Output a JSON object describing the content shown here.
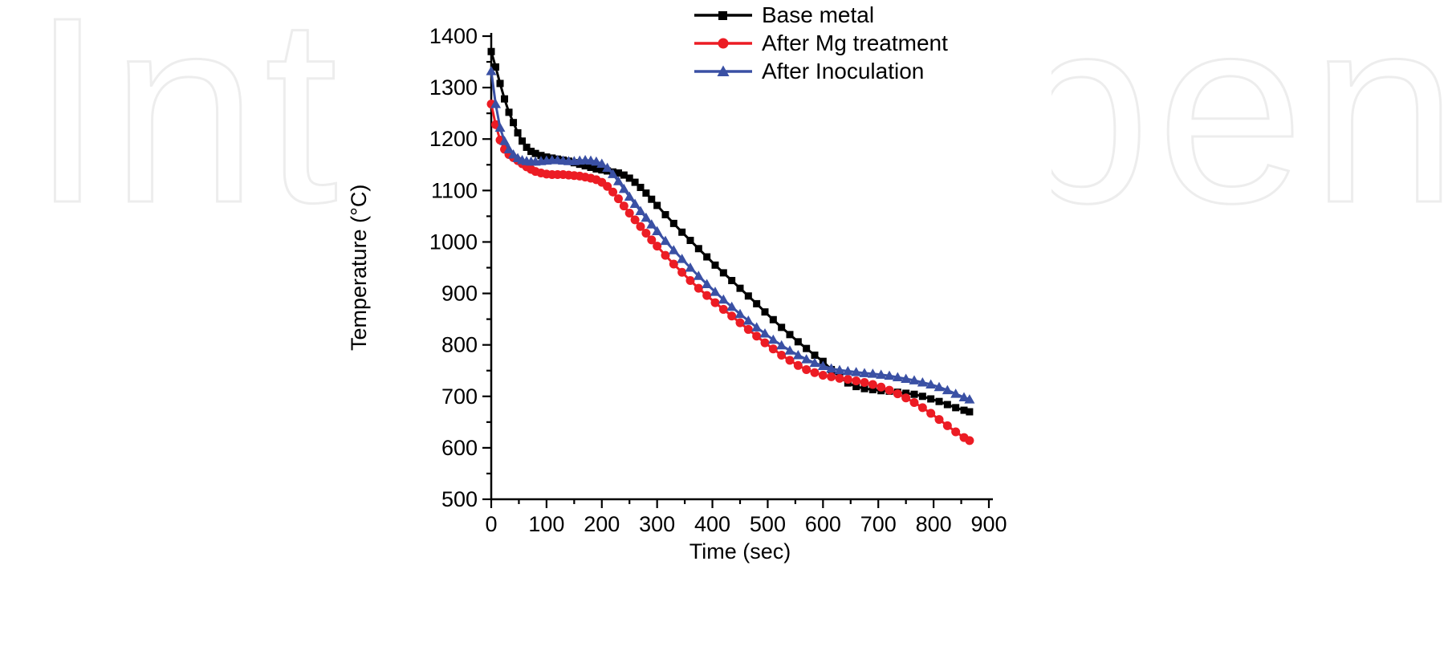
{
  "watermark": {
    "text": "IntechOpen"
  },
  "chart_data": {
    "type": "line",
    "title": "",
    "xlabel": "Time (sec)",
    "ylabel": "Temperature (°C)",
    "xlim": [
      0,
      900
    ],
    "ylim": [
      500,
      1400
    ],
    "x_major_step": 100,
    "x_minor_step": 50,
    "y_major_step": 100,
    "y_minor_step": 50,
    "x_tick_labels": [
      "0",
      "100",
      "200",
      "300",
      "400",
      "500",
      "600",
      "700",
      "800",
      "900"
    ],
    "y_tick_labels": [
      "500",
      "600",
      "700",
      "800",
      "900",
      "1000",
      "1100",
      "1200",
      "1300",
      "1400"
    ],
    "grid": false,
    "legend_position": "top-right",
    "series": [
      {
        "name": "Base metal",
        "color": "#000000",
        "marker": "square",
        "points": [
          [
            0,
            1370
          ],
          [
            8,
            1340
          ],
          [
            16,
            1308
          ],
          [
            24,
            1278
          ],
          [
            32,
            1252
          ],
          [
            40,
            1232
          ],
          [
            48,
            1212
          ],
          [
            56,
            1196
          ],
          [
            64,
            1184
          ],
          [
            72,
            1176
          ],
          [
            80,
            1172
          ],
          [
            90,
            1168
          ],
          [
            100,
            1165
          ],
          [
            110,
            1163
          ],
          [
            120,
            1161
          ],
          [
            130,
            1159
          ],
          [
            140,
            1157
          ],
          [
            150,
            1154
          ],
          [
            160,
            1151
          ],
          [
            170,
            1148
          ],
          [
            180,
            1145
          ],
          [
            190,
            1142
          ],
          [
            200,
            1140
          ],
          [
            210,
            1138
          ],
          [
            220,
            1136
          ],
          [
            230,
            1134
          ],
          [
            240,
            1130
          ],
          [
            250,
            1124
          ],
          [
            260,
            1116
          ],
          [
            270,
            1106
          ],
          [
            280,
            1095
          ],
          [
            290,
            1083
          ],
          [
            300,
            1071
          ],
          [
            315,
            1053
          ],
          [
            330,
            1036
          ],
          [
            345,
            1019
          ],
          [
            360,
            1003
          ],
          [
            375,
            987
          ],
          [
            390,
            971
          ],
          [
            405,
            955
          ],
          [
            420,
            940
          ],
          [
            435,
            925
          ],
          [
            450,
            910
          ],
          [
            465,
            895
          ],
          [
            480,
            880
          ],
          [
            495,
            864
          ],
          [
            510,
            849
          ],
          [
            525,
            834
          ],
          [
            540,
            820
          ],
          [
            555,
            806
          ],
          [
            570,
            793
          ],
          [
            585,
            780
          ],
          [
            600,
            768
          ],
          [
            615,
            752
          ],
          [
            630,
            738
          ],
          [
            645,
            726
          ],
          [
            660,
            719
          ],
          [
            675,
            715
          ],
          [
            690,
            713
          ],
          [
            705,
            711
          ],
          [
            720,
            710
          ],
          [
            735,
            708
          ],
          [
            750,
            706
          ],
          [
            765,
            704
          ],
          [
            780,
            700
          ],
          [
            795,
            695
          ],
          [
            810,
            690
          ],
          [
            825,
            684
          ],
          [
            840,
            678
          ],
          [
            855,
            673
          ],
          [
            865,
            670
          ]
        ]
      },
      {
        "name": "After Mg treatment",
        "color": "#ec1c24",
        "marker": "circle",
        "points": [
          [
            0,
            1268
          ],
          [
            8,
            1228
          ],
          [
            16,
            1198
          ],
          [
            24,
            1180
          ],
          [
            32,
            1170
          ],
          [
            40,
            1164
          ],
          [
            48,
            1158
          ],
          [
            56,
            1152
          ],
          [
            64,
            1146
          ],
          [
            72,
            1141
          ],
          [
            80,
            1137
          ],
          [
            90,
            1134
          ],
          [
            100,
            1132
          ],
          [
            110,
            1131
          ],
          [
            120,
            1131
          ],
          [
            130,
            1131
          ],
          [
            140,
            1130
          ],
          [
            150,
            1129
          ],
          [
            160,
            1128
          ],
          [
            170,
            1126
          ],
          [
            180,
            1124
          ],
          [
            190,
            1121
          ],
          [
            200,
            1116
          ],
          [
            210,
            1108
          ],
          [
            220,
            1097
          ],
          [
            230,
            1084
          ],
          [
            240,
            1070
          ],
          [
            250,
            1056
          ],
          [
            260,
            1043
          ],
          [
            270,
            1030
          ],
          [
            280,
            1017
          ],
          [
            290,
            1004
          ],
          [
            300,
            992
          ],
          [
            315,
            974
          ],
          [
            330,
            957
          ],
          [
            345,
            941
          ],
          [
            360,
            925
          ],
          [
            375,
            910
          ],
          [
            390,
            896
          ],
          [
            405,
            882
          ],
          [
            420,
            869
          ],
          [
            435,
            856
          ],
          [
            450,
            843
          ],
          [
            465,
            830
          ],
          [
            480,
            817
          ],
          [
            495,
            804
          ],
          [
            510,
            792
          ],
          [
            525,
            780
          ],
          [
            540,
            770
          ],
          [
            555,
            760
          ],
          [
            570,
            752
          ],
          [
            585,
            746
          ],
          [
            600,
            741
          ],
          [
            615,
            738
          ],
          [
            630,
            735
          ],
          [
            645,
            733
          ],
          [
            660,
            730
          ],
          [
            675,
            727
          ],
          [
            690,
            723
          ],
          [
            705,
            718
          ],
          [
            720,
            712
          ],
          [
            735,
            705
          ],
          [
            750,
            697
          ],
          [
            765,
            688
          ],
          [
            780,
            678
          ],
          [
            795,
            667
          ],
          [
            810,
            655
          ],
          [
            825,
            643
          ],
          [
            840,
            631
          ],
          [
            855,
            620
          ],
          [
            865,
            614
          ]
        ]
      },
      {
        "name": "After Inoculation",
        "color": "#3a50a4",
        "marker": "triangle",
        "points": [
          [
            0,
            1332
          ],
          [
            8,
            1268
          ],
          [
            16,
            1222
          ],
          [
            24,
            1196
          ],
          [
            32,
            1180
          ],
          [
            40,
            1170
          ],
          [
            48,
            1163
          ],
          [
            56,
            1159
          ],
          [
            64,
            1157
          ],
          [
            72,
            1156
          ],
          [
            80,
            1156
          ],
          [
            90,
            1157
          ],
          [
            100,
            1158
          ],
          [
            110,
            1159
          ],
          [
            120,
            1159
          ],
          [
            130,
            1158
          ],
          [
            140,
            1157
          ],
          [
            150,
            1157
          ],
          [
            160,
            1158
          ],
          [
            170,
            1159
          ],
          [
            180,
            1158
          ],
          [
            190,
            1156
          ],
          [
            200,
            1152
          ],
          [
            210,
            1144
          ],
          [
            220,
            1132
          ],
          [
            230,
            1118
          ],
          [
            240,
            1103
          ],
          [
            250,
            1088
          ],
          [
            260,
            1074
          ],
          [
            270,
            1060
          ],
          [
            280,
            1047
          ],
          [
            290,
            1034
          ],
          [
            300,
            1021
          ],
          [
            315,
            1002
          ],
          [
            330,
            984
          ],
          [
            345,
            967
          ],
          [
            360,
            950
          ],
          [
            375,
            934
          ],
          [
            390,
            918
          ],
          [
            405,
            903
          ],
          [
            420,
            888
          ],
          [
            435,
            874
          ],
          [
            450,
            860
          ],
          [
            465,
            847
          ],
          [
            480,
            834
          ],
          [
            495,
            822
          ],
          [
            510,
            810
          ],
          [
            525,
            799
          ],
          [
            540,
            789
          ],
          [
            555,
            780
          ],
          [
            570,
            772
          ],
          [
            585,
            765
          ],
          [
            600,
            759
          ],
          [
            615,
            754
          ],
          [
            630,
            751
          ],
          [
            645,
            749
          ],
          [
            660,
            747
          ],
          [
            675,
            745
          ],
          [
            690,
            744
          ],
          [
            705,
            742
          ],
          [
            720,
            740
          ],
          [
            735,
            737
          ],
          [
            750,
            734
          ],
          [
            765,
            731
          ],
          [
            780,
            727
          ],
          [
            795,
            723
          ],
          [
            810,
            718
          ],
          [
            825,
            712
          ],
          [
            840,
            705
          ],
          [
            855,
            698
          ],
          [
            865,
            694
          ]
        ]
      }
    ]
  }
}
